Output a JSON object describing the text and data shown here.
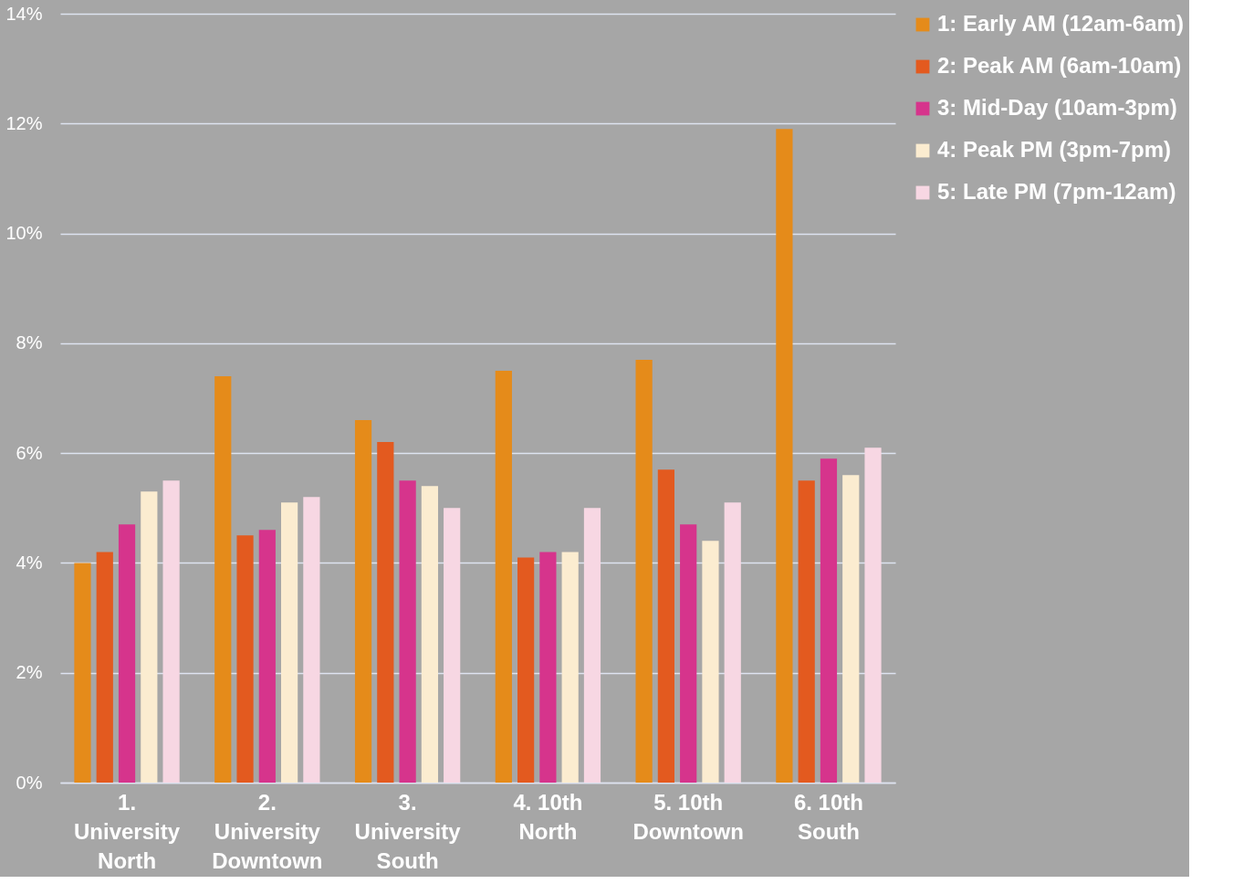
{
  "chart_data": {
    "type": "bar",
    "categories": [
      "1.\nUniversity\nNorth",
      "2.\nUniversity\nDowntown",
      "3.\nUniversity\nSouth",
      "4. 10th\nNorth",
      "5. 10th\nDowntown",
      "6. 10th\nSouth"
    ],
    "series": [
      {
        "name": "1: Early AM (12am-6am)",
        "color": "#e58b1a",
        "values": [
          4.0,
          7.4,
          6.6,
          7.5,
          7.7,
          11.9
        ]
      },
      {
        "name": "2: Peak AM (6am-10am)",
        "color": "#e35a1f",
        "values": [
          4.2,
          4.5,
          6.2,
          4.1,
          5.7,
          5.5
        ]
      },
      {
        "name": "3: Mid-Day (10am-3pm)",
        "color": "#d6348c",
        "values": [
          4.7,
          4.6,
          5.5,
          4.2,
          4.7,
          5.9
        ]
      },
      {
        "name": "4: Peak PM (3pm-7pm)",
        "color": "#fbecd0",
        "values": [
          5.3,
          5.1,
          5.4,
          4.2,
          4.4,
          5.6
        ]
      },
      {
        "name": "5: Late PM (7pm-12am)",
        "color": "#f7d7e3",
        "values": [
          5.5,
          5.2,
          5.0,
          5.0,
          5.1,
          6.1
        ]
      }
    ],
    "ylim": [
      0,
      14
    ],
    "yticks": [
      {
        "value": 0,
        "label": "0%"
      },
      {
        "value": 2,
        "label": "2%"
      },
      {
        "value": 4,
        "label": "4%"
      },
      {
        "value": 6,
        "label": "6%"
      },
      {
        "value": 8,
        "label": "8%"
      },
      {
        "value": 10,
        "label": "10%"
      },
      {
        "value": 12,
        "label": "12%"
      },
      {
        "value": 14,
        "label": "14%"
      }
    ],
    "grid": "y",
    "legend": "right"
  }
}
